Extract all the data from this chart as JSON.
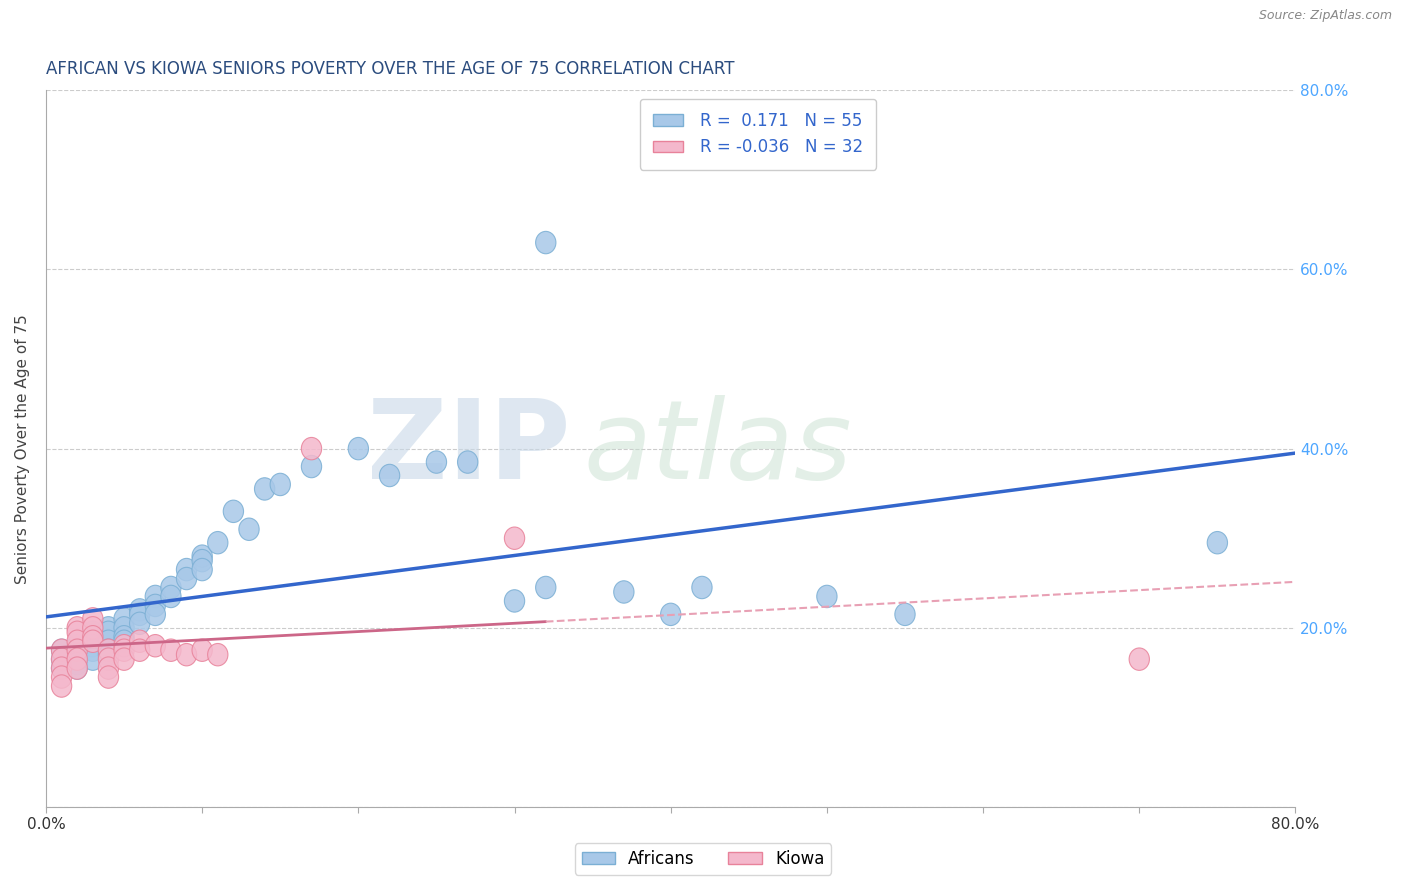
{
  "title": "AFRICAN VS KIOWA SENIORS POVERTY OVER THE AGE OF 75 CORRELATION CHART",
  "source": "Source: ZipAtlas.com",
  "ylabel": "Seniors Poverty Over the Age of 75",
  "xlim": [
    0.0,
    0.8
  ],
  "ylim": [
    0.0,
    0.8
  ],
  "xticks": [
    0.0,
    0.1,
    0.2,
    0.3,
    0.4,
    0.5,
    0.6,
    0.7,
    0.8
  ],
  "yticks": [
    0.0,
    0.2,
    0.4,
    0.6,
    0.8
  ],
  "africans_color": "#a8c8e8",
  "africans_edge_color": "#7bafd4",
  "kiowa_color": "#f4b8cc",
  "kiowa_edge_color": "#e8829a",
  "africans_line_color": "#3366cc",
  "kiowa_line_color": "#cc6688",
  "kiowa_line_dash_color": "#e8a0b4",
  "grid_color": "#cccccc",
  "background_color": "#ffffff",
  "legend_R_african": "R =  0.171",
  "legend_N_african": "N = 55",
  "legend_R_kiowa": "R = -0.036",
  "legend_N_kiowa": "N = 32",
  "title_fontsize": 12,
  "axis_label_fontsize": 11,
  "tick_fontsize": 11,
  "legend_fontsize": 12,
  "africans_x": [
    0.01,
    0.01,
    0.01,
    0.02,
    0.02,
    0.02,
    0.02,
    0.02,
    0.02,
    0.03,
    0.03,
    0.03,
    0.03,
    0.03,
    0.04,
    0.04,
    0.04,
    0.04,
    0.04,
    0.05,
    0.05,
    0.05,
    0.05,
    0.06,
    0.06,
    0.06,
    0.07,
    0.07,
    0.07,
    0.08,
    0.08,
    0.09,
    0.09,
    0.1,
    0.1,
    0.1,
    0.11,
    0.12,
    0.13,
    0.14,
    0.15,
    0.17,
    0.2,
    0.22,
    0.25,
    0.27,
    0.3,
    0.32,
    0.37,
    0.4,
    0.42,
    0.5,
    0.32,
    0.55,
    0.75
  ],
  "africans_y": [
    0.175,
    0.165,
    0.155,
    0.18,
    0.175,
    0.17,
    0.165,
    0.16,
    0.155,
    0.195,
    0.185,
    0.18,
    0.175,
    0.165,
    0.2,
    0.195,
    0.185,
    0.175,
    0.17,
    0.21,
    0.2,
    0.19,
    0.185,
    0.22,
    0.215,
    0.205,
    0.235,
    0.225,
    0.215,
    0.245,
    0.235,
    0.265,
    0.255,
    0.28,
    0.275,
    0.265,
    0.295,
    0.33,
    0.31,
    0.355,
    0.36,
    0.38,
    0.4,
    0.37,
    0.385,
    0.385,
    0.23,
    0.245,
    0.24,
    0.215,
    0.245,
    0.235,
    0.63,
    0.215,
    0.295
  ],
  "kiowa_x": [
    0.01,
    0.01,
    0.01,
    0.01,
    0.01,
    0.02,
    0.02,
    0.02,
    0.02,
    0.02,
    0.02,
    0.03,
    0.03,
    0.03,
    0.03,
    0.04,
    0.04,
    0.04,
    0.04,
    0.05,
    0.05,
    0.05,
    0.06,
    0.06,
    0.07,
    0.08,
    0.09,
    0.1,
    0.11,
    0.17,
    0.7,
    0.3
  ],
  "kiowa_y": [
    0.175,
    0.165,
    0.155,
    0.145,
    0.135,
    0.2,
    0.195,
    0.185,
    0.175,
    0.165,
    0.155,
    0.21,
    0.2,
    0.19,
    0.185,
    0.175,
    0.165,
    0.155,
    0.145,
    0.18,
    0.175,
    0.165,
    0.185,
    0.175,
    0.18,
    0.175,
    0.17,
    0.175,
    0.17,
    0.4,
    0.165,
    0.3
  ]
}
